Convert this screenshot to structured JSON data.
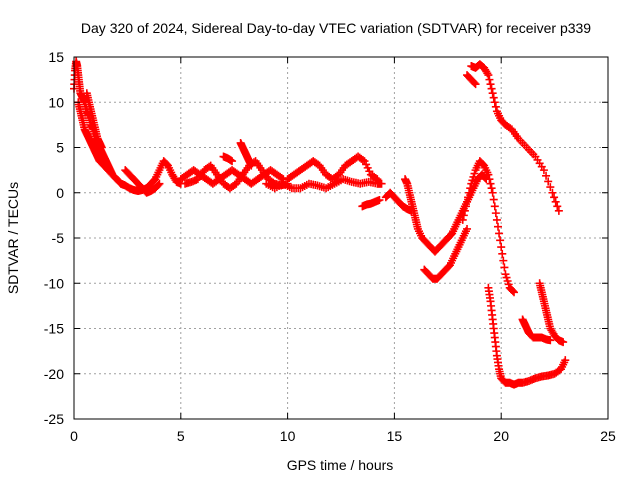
{
  "chart_data": {
    "type": "scatter",
    "title": "Day 320 of 2024, Sidereal Day-to-day VTEC variation (SDTVAR) for receiver p339",
    "xlabel": "GPS time / hours",
    "ylabel": "SDTVAR / TECUs",
    "xlim": [
      0,
      25
    ],
    "ylim": [
      -25,
      15
    ],
    "xticks": [
      0,
      5,
      10,
      15,
      20,
      25
    ],
    "yticks": [
      -25,
      -20,
      -15,
      -10,
      -5,
      0,
      5,
      10,
      15
    ],
    "grid": true,
    "legend": "none",
    "marker": "+",
    "color": "#ff0000",
    "series": [
      {
        "x": [
          0.0,
          0.05,
          0.1,
          0.15,
          0.2,
          0.25,
          0.3,
          0.4,
          0.5,
          0.6,
          0.7,
          0.8,
          0.9,
          1.0,
          1.1,
          1.2,
          1.3,
          1.4,
          1.5,
          1.6,
          1.7,
          1.8,
          2.0,
          2.2,
          2.4,
          2.6,
          2.8,
          3.0,
          3.2,
          3.4,
          3.6,
          3.8,
          4.0,
          4.2,
          4.4,
          4.6,
          4.8,
          5.0
        ],
        "y": [
          11.5,
          13.5,
          14.5,
          14.0,
          13.0,
          12.0,
          11.0,
          10.5,
          10.0,
          9.0,
          8.5,
          7.5,
          7.0,
          6.0,
          5.5,
          5.0,
          4.5,
          4.0,
          3.5,
          3.0,
          2.5,
          2.0,
          1.5,
          1.0,
          0.8,
          0.5,
          0.3,
          0.2,
          0.3,
          0.5,
          1.0,
          1.5,
          2.5,
          3.5,
          3.0,
          2.0,
          1.2,
          1.0
        ]
      },
      {
        "x": [
          0.2,
          0.3,
          0.4,
          0.5,
          0.6,
          0.7,
          0.8,
          0.9,
          1.0,
          1.1,
          1.2,
          1.4,
          1.6,
          1.8,
          2.0,
          2.2,
          2.4
        ],
        "y": [
          10.0,
          9.0,
          8.0,
          7.0,
          6.5,
          6.0,
          5.5,
          5.0,
          4.5,
          4.0,
          3.5,
          3.0,
          2.5,
          2.0,
          1.5,
          1.0,
          0.8
        ]
      },
      {
        "x": [
          0.6,
          0.7,
          0.8,
          0.9,
          1.0,
          1.1,
          1.2,
          1.3
        ],
        "y": [
          11.0,
          10.0,
          9.0,
          8.0,
          7.0,
          6.0,
          5.5,
          5.0
        ]
      },
      {
        "x": [
          2.4,
          2.6,
          2.8,
          3.0,
          3.2,
          3.4,
          3.6,
          3.8,
          4.0
        ],
        "y": [
          2.5,
          2.0,
          1.5,
          1.0,
          0.5,
          0.0,
          0.2,
          0.5,
          1.0
        ]
      },
      {
        "x": [
          5.0,
          5.3,
          5.6,
          5.9,
          6.2,
          6.5,
          6.8,
          7.1,
          7.4,
          7.7,
          8.0,
          8.3,
          8.6,
          8.9,
          9.2,
          9.5,
          9.8
        ],
        "y": [
          1.5,
          2.0,
          2.5,
          2.0,
          1.5,
          1.0,
          1.5,
          2.0,
          2.5,
          2.0,
          1.5,
          1.0,
          1.5,
          2.0,
          2.5,
          2.0,
          1.5
        ]
      },
      {
        "x": [
          5.2,
          5.5,
          5.8,
          6.1,
          6.4,
          6.7,
          7.0,
          7.3,
          7.6,
          7.9,
          8.2,
          8.5,
          8.8,
          9.1,
          9.4,
          9.7,
          10.0
        ],
        "y": [
          1.0,
          1.2,
          1.5,
          2.5,
          3.0,
          2.0,
          1.0,
          0.5,
          1.0,
          2.0,
          3.0,
          3.5,
          2.5,
          1.5,
          1.0,
          0.8,
          1.0
        ]
      },
      {
        "x": [
          7.8,
          7.9,
          8.0,
          8.1,
          8.2,
          8.3
        ],
        "y": [
          5.5,
          5.0,
          4.5,
          4.0,
          3.5,
          3.0
        ]
      },
      {
        "x": [
          7.0,
          7.2,
          7.4
        ],
        "y": [
          4.0,
          3.8,
          3.5
        ]
      },
      {
        "x": [
          10.0,
          10.3,
          10.6,
          10.9,
          11.2,
          11.5,
          11.8,
          12.1,
          12.4,
          12.7,
          13.0,
          13.3,
          13.6,
          13.9,
          14.2
        ],
        "y": [
          1.5,
          2.0,
          2.5,
          3.0,
          3.5,
          3.0,
          2.0,
          1.5,
          2.0,
          3.0,
          3.5,
          4.0,
          3.5,
          2.0,
          1.5
        ]
      },
      {
        "x": [
          9.0,
          9.4,
          9.8,
          10.2,
          10.6,
          11.0,
          11.4,
          11.8,
          12.2,
          12.6,
          13.0,
          13.4,
          13.8,
          14.2,
          14.4
        ],
        "y": [
          1.0,
          0.5,
          1.0,
          0.5,
          0.5,
          1.0,
          0.8,
          0.5,
          1.0,
          1.5,
          1.2,
          1.0,
          1.2,
          1.0,
          1.0
        ]
      },
      {
        "x": [
          13.5,
          13.7,
          13.9,
          14.1,
          14.3
        ],
        "y": [
          -1.5,
          -1.3,
          -1.2,
          -1.0,
          -0.8
        ]
      },
      {
        "x": [
          14.6,
          14.8,
          15.0,
          15.2,
          15.4,
          15.6,
          15.8
        ],
        "y": [
          -0.5,
          0.0,
          -0.5,
          -1.0,
          -1.5,
          -1.8,
          -2.0
        ]
      },
      {
        "x": [
          15.5,
          15.6,
          15.7,
          15.8,
          15.9,
          16.0,
          16.1,
          16.3,
          16.5,
          16.7,
          16.9,
          17.1,
          17.3,
          17.5,
          17.7
        ],
        "y": [
          1.5,
          1.0,
          0.0,
          -1.0,
          -2.0,
          -3.0,
          -4.0,
          -5.0,
          -5.5,
          -6.0,
          -6.5,
          -6.0,
          -5.5,
          -5.0,
          -4.5
        ]
      },
      {
        "x": [
          16.4,
          16.6,
          16.8,
          17.0,
          17.2,
          17.4,
          17.6,
          17.8,
          18.0,
          18.2,
          18.4
        ],
        "y": [
          -8.5,
          -9.0,
          -9.5,
          -9.5,
          -9.0,
          -8.5,
          -8.0,
          -7.0,
          -6.0,
          -5.0,
          -4.0
        ]
      },
      {
        "x": [
          17.5,
          17.7,
          17.9,
          18.1,
          18.3,
          18.5,
          18.7,
          18.9,
          19.1,
          19.3
        ],
        "y": [
          -5.0,
          -4.5,
          -3.5,
          -2.5,
          -1.5,
          -0.5,
          0.5,
          1.5,
          2.0,
          1.5
        ]
      },
      {
        "x": [
          18.2,
          18.4,
          18.6,
          18.8,
          19.0,
          19.2,
          19.4,
          19.6,
          19.8,
          20.0,
          20.2,
          20.4,
          20.6
        ],
        "y": [
          -3.0,
          -1.0,
          1.0,
          2.5,
          3.5,
          3.0,
          2.0,
          0.0,
          -3.0,
          -6.0,
          -9.0,
          -10.5,
          -11.0
        ]
      },
      {
        "x": [
          18.6,
          18.8,
          19.0,
          19.2,
          19.4,
          19.6,
          19.8,
          20.0,
          20.2,
          20.5,
          20.8,
          21.2,
          21.6,
          22.0,
          22.4,
          22.7
        ],
        "y": [
          14.0,
          13.8,
          14.2,
          13.8,
          13.0,
          11.0,
          9.0,
          8.0,
          7.5,
          7.0,
          6.0,
          5.0,
          4.0,
          2.5,
          0.0,
          -2.0
        ]
      },
      {
        "x": [
          18.4,
          18.6,
          18.8
        ],
        "y": [
          13.0,
          12.5,
          12.0
        ]
      },
      {
        "x": [
          19.4,
          19.5,
          19.6,
          19.7,
          19.8,
          19.9,
          20.0,
          20.2,
          20.4,
          20.6,
          20.8,
          21.0,
          21.3,
          21.6,
          21.9,
          22.2,
          22.5,
          22.8,
          23.0
        ],
        "y": [
          -10.5,
          -12.0,
          -14.0,
          -16.0,
          -18.0,
          -19.5,
          -20.5,
          -21.0,
          -21.0,
          -21.2,
          -21.0,
          -21.0,
          -20.8,
          -20.5,
          -20.3,
          -20.2,
          -20.0,
          -19.5,
          -18.5
        ]
      },
      {
        "x": [
          21.0,
          21.1,
          21.2,
          21.3,
          21.5,
          21.7,
          21.9,
          22.1,
          22.3
        ],
        "y": [
          -14.0,
          -14.5,
          -15.0,
          -15.5,
          -16.0,
          -16.0,
          -16.0,
          -16.2,
          -16.3
        ]
      },
      {
        "x": [
          21.8,
          21.9,
          22.0,
          22.1,
          22.2,
          22.3,
          22.5,
          22.7,
          22.9
        ],
        "y": [
          -10.0,
          -11.0,
          -12.0,
          -13.0,
          -14.0,
          -15.0,
          -15.8,
          -16.3,
          -16.5
        ]
      }
    ]
  }
}
